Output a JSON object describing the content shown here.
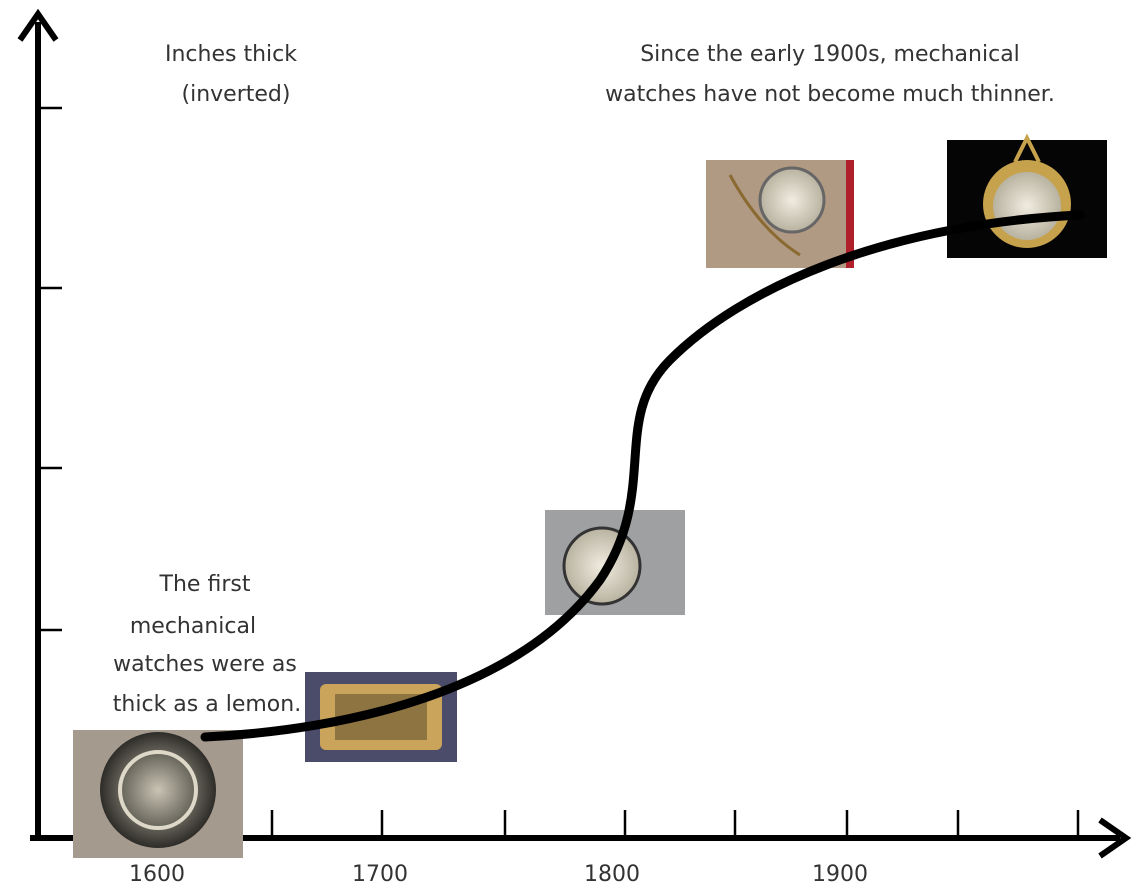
{
  "y_axis_label": {
    "lines": [
      "Inches thick",
      "(inverted)"
    ]
  },
  "x_axis": {
    "labels": [
      "1600",
      "1700",
      "1800",
      "1900"
    ]
  },
  "annotations": [
    {
      "lines": [
        "Since the early 1900s, mechanical",
        "watches have not become much thinner."
      ]
    },
    {
      "lines": [
        "The first",
        "mechanical",
        "watches were as",
        "thick as a lemon."
      ]
    }
  ]
}
